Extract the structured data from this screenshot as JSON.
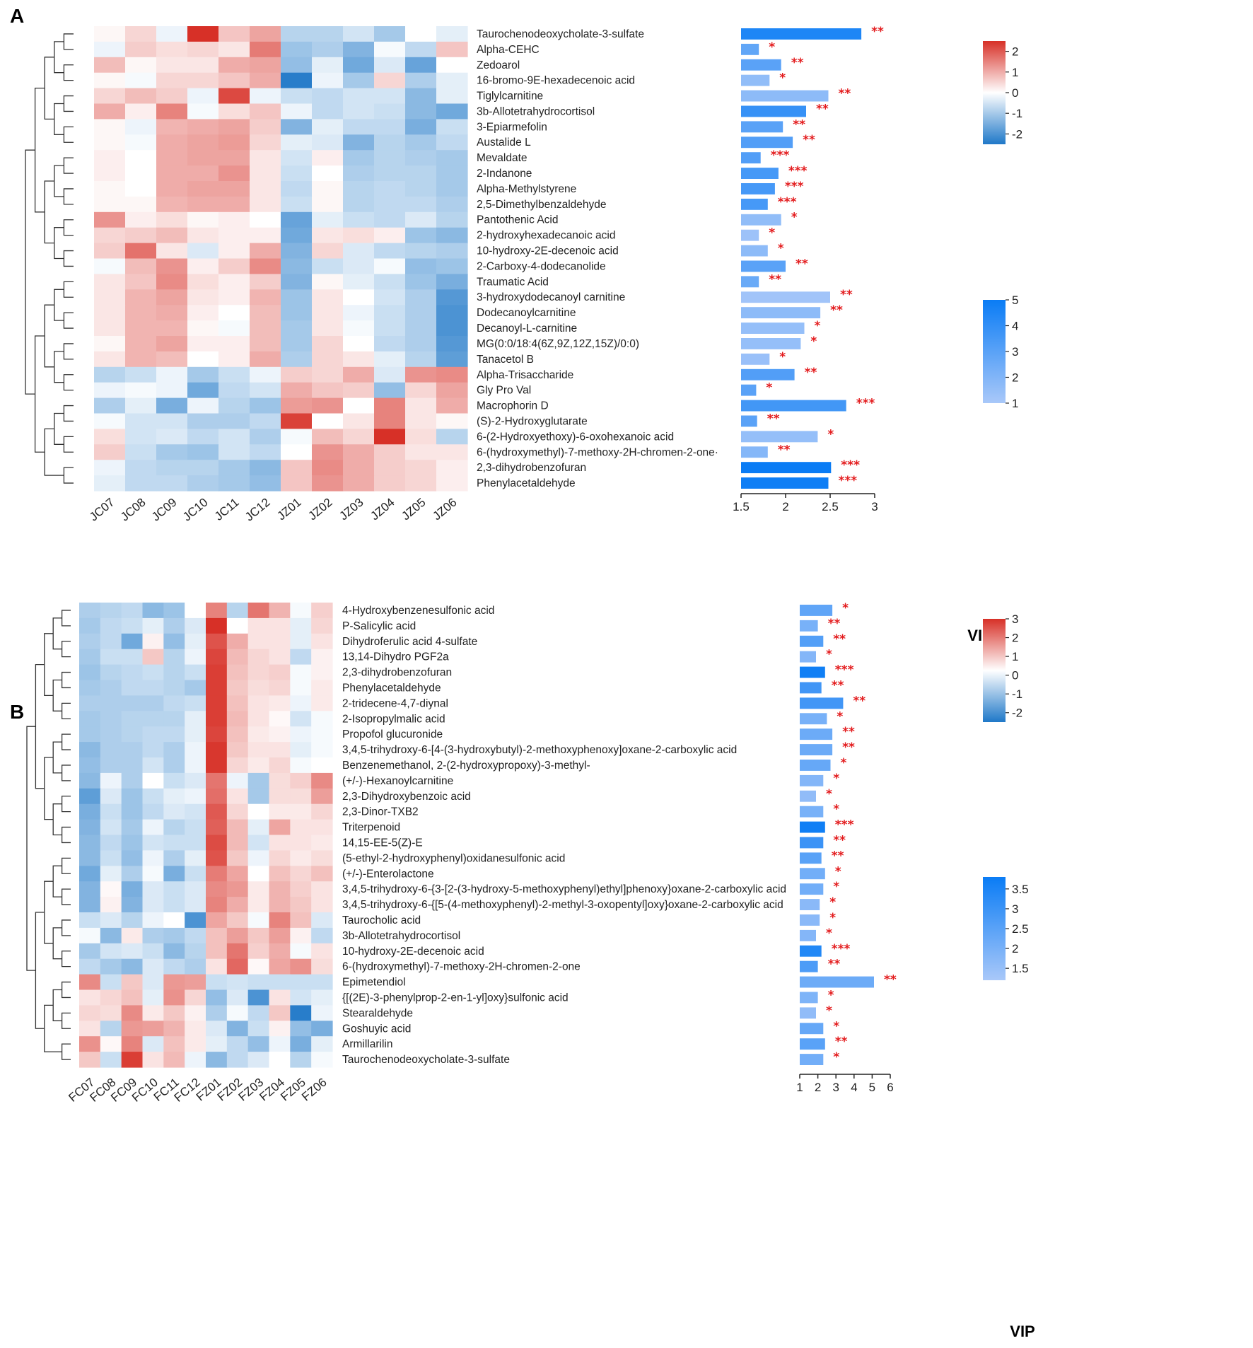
{
  "chart_data": [
    {
      "panel": "A",
      "type": "heatmap",
      "xlabel": "VIP",
      "samples": [
        "JC07",
        "JC08",
        "JC09",
        "JC10",
        "JC11",
        "JC12",
        "JZ01",
        "JZ02",
        "JZ03",
        "JZ04",
        "JZ05",
        "JZ06"
      ],
      "heat_ticks": [
        "2",
        "1",
        "0",
        "-1",
        "-2"
      ],
      "heat_range": [
        -2.5,
        2.5
      ],
      "vip_ticks": [
        "1.5",
        "2",
        "2.5",
        "3"
      ],
      "vip_range": [
        1.5,
        3
      ],
      "legend_vip_ticks": [
        "5",
        "4",
        "3",
        "2",
        "1"
      ],
      "legend_vip_range": [
        1,
        5
      ],
      "metabolites": [
        "Taurochenodeoxycholate-3-sulfate",
        "Alpha-CEHC",
        "Zedoarol",
        "16-bromo-9E-hexadecenoic acid",
        "Tiglylcarnitine",
        "3b-Allotetrahydrocortisol",
        "3-Epiarmefolin",
        "Austalide L",
        "Mevaldate",
        "2-Indanone",
        "Alpha-Methylstyrene",
        "2,5-Dimethylbenzaldehyde",
        "Pantothenic Acid",
        "2-hydroxyhexadecanoic acid",
        "10-hydroxy-2E-decenoic acid",
        "2-Carboxy-4-dodecanolide",
        "Traumatic Acid",
        "3-hydroxydodecanoyl carnitine",
        "Dodecanoylcarnitine",
        "Decanoyl-L-carnitine",
        "MG(0:0/18:4(6Z,9Z,12Z,15Z)/0:0)",
        "Tanacetol B",
        "Alpha-Trisaccharide",
        "Gly Pro Val",
        "Macrophorin D",
        "(S)-2-Hydroxyglutarate",
        "6-(2-Hydroxyethoxy)-6-oxohexanoic acid",
        "6-(hydroxymethyl)-7-methoxy-2H-chromen-2-one·",
        "2,3-dihydrobenzofuran",
        "Phenylacetaldehyde"
      ],
      "vip": [
        2.85,
        1.7,
        1.95,
        1.82,
        2.48,
        2.23,
        1.97,
        2.08,
        1.72,
        1.92,
        1.88,
        1.8,
        1.95,
        1.7,
        1.8,
        2.0,
        1.7,
        2.5,
        2.39,
        2.21,
        2.17,
        1.82,
        2.1,
        1.67,
        2.68,
        1.68,
        2.36,
        1.8,
        2.51,
        2.48
      ],
      "fold": [
        4.5,
        2.8,
        3.0,
        1.6,
        1.7,
        3.9,
        3.0,
        3.2,
        3.2,
        3.5,
        3.5,
        3.5,
        1.6,
        1.3,
        1.7,
        3.0,
        2.6,
        1.2,
        1.7,
        1.5,
        1.5,
        1.4,
        3.2,
        3.0,
        3.6,
        3.0,
        1.5,
        1.9,
        5.0,
        4.9
      ],
      "sig": [
        "**",
        "*",
        "**",
        "*",
        "**",
        "**",
        "**",
        "**",
        "***",
        "***",
        "***",
        "***",
        "*",
        "*",
        "*",
        "**",
        "**",
        "**",
        "**",
        "*",
        "*",
        "*",
        "**",
        "*",
        "***",
        "**",
        "*",
        "**",
        "***",
        "***"
      ],
      "values": [
        [
          0.1,
          0.5,
          -0.2,
          2.5,
          0.7,
          1.1,
          -0.8,
          -0.8,
          -0.5,
          -1.0,
          0.0,
          -0.3
        ],
        [
          -0.2,
          0.6,
          0.4,
          0.5,
          0.3,
          1.6,
          -1.1,
          -0.9,
          -1.4,
          -0.1,
          -0.7,
          0.7
        ],
        [
          0.8,
          0.1,
          0.3,
          0.3,
          1.0,
          1.1,
          -1.2,
          -0.3,
          -1.6,
          -0.4,
          -1.7,
          0.0
        ],
        [
          0.1,
          -0.1,
          0.5,
          0.5,
          0.7,
          1.0,
          -2.4,
          -0.2,
          -1.0,
          0.5,
          -0.9,
          -0.3
        ],
        [
          0.5,
          0.8,
          0.6,
          -0.2,
          2.2,
          -0.2,
          -0.6,
          -0.7,
          -0.5,
          -0.5,
          -1.3,
          -0.3
        ],
        [
          1.0,
          0.2,
          1.5,
          -0.1,
          0.4,
          0.7,
          -0.2,
          -0.7,
          -0.5,
          -0.6,
          -1.3,
          -1.6
        ],
        [
          0.1,
          -0.2,
          0.9,
          1.0,
          1.1,
          0.6,
          -1.4,
          -0.3,
          -0.7,
          -0.7,
          -1.5,
          -0.6
        ],
        [
          0.1,
          -0.1,
          1.0,
          1.1,
          1.2,
          0.5,
          -0.3,
          -0.4,
          -1.4,
          -0.8,
          -1.0,
          -0.7
        ],
        [
          0.2,
          0.0,
          1.0,
          1.1,
          1.1,
          0.3,
          -0.5,
          0.2,
          -1.0,
          -0.8,
          -0.9,
          -1.0
        ],
        [
          0.2,
          0.0,
          1.0,
          1.0,
          1.3,
          0.3,
          -0.6,
          0.0,
          -0.9,
          -0.8,
          -0.8,
          -1.0
        ],
        [
          0.1,
          0.0,
          1.0,
          1.1,
          1.1,
          0.3,
          -0.7,
          0.1,
          -0.8,
          -0.7,
          -0.8,
          -1.0
        ],
        [
          0.1,
          0.1,
          0.9,
          1.0,
          1.0,
          0.3,
          -0.6,
          0.1,
          -0.8,
          -0.7,
          -0.7,
          -0.9
        ],
        [
          1.3,
          0.2,
          0.4,
          0.1,
          0.2,
          0.0,
          -1.7,
          -0.3,
          -0.6,
          -0.7,
          -0.4,
          -0.8
        ],
        [
          0.5,
          0.6,
          0.8,
          0.3,
          0.2,
          0.2,
          -1.6,
          0.3,
          0.4,
          0.2,
          -1.1,
          -1.3
        ],
        [
          0.6,
          1.7,
          0.3,
          -0.4,
          0.2,
          1.0,
          -1.4,
          0.5,
          -0.4,
          -0.7,
          -0.8,
          -0.9
        ],
        [
          -0.1,
          0.8,
          1.3,
          0.2,
          0.6,
          1.4,
          -1.3,
          -0.6,
          -0.4,
          -0.1,
          -1.2,
          -1.1
        ],
        [
          0.3,
          0.7,
          1.4,
          0.4,
          0.2,
          0.6,
          -1.4,
          0.1,
          -0.3,
          -0.6,
          -1.1,
          -1.5
        ],
        [
          0.3,
          0.9,
          1.1,
          0.3,
          0.2,
          0.9,
          -1.1,
          0.3,
          0.0,
          -0.5,
          -0.9,
          -1.9
        ],
        [
          0.3,
          0.9,
          1.0,
          0.2,
          0.0,
          0.8,
          -1.1,
          0.3,
          -0.2,
          -0.6,
          -0.9,
          -2.0
        ],
        [
          0.3,
          0.9,
          0.9,
          0.1,
          -0.1,
          0.8,
          -1.0,
          0.3,
          -0.1,
          -0.6,
          -0.9,
          -2.0
        ],
        [
          0.1,
          0.9,
          1.1,
          0.2,
          0.2,
          0.8,
          -1.0,
          0.5,
          0.0,
          -0.7,
          -0.9,
          -1.9
        ],
        [
          0.3,
          0.9,
          0.8,
          0.0,
          0.2,
          1.0,
          -0.9,
          0.5,
          0.3,
          -0.3,
          -0.8,
          -1.8
        ],
        [
          -0.8,
          -0.6,
          -0.2,
          -1.0,
          -0.6,
          -0.2,
          0.6,
          0.5,
          1.0,
          -0.4,
          1.3,
          1.4
        ],
        [
          -0.2,
          -0.1,
          -0.2,
          -1.6,
          -0.7,
          -0.5,
          1.0,
          0.7,
          0.6,
          -1.2,
          0.5,
          1.1
        ],
        [
          -0.9,
          -0.3,
          -1.5,
          -0.2,
          -0.8,
          -1.1,
          1.2,
          1.3,
          0.0,
          1.5,
          0.3,
          1.0
        ],
        [
          -0.1,
          -0.5,
          -0.5,
          -0.9,
          -0.9,
          -0.7,
          2.3,
          0.0,
          0.3,
          1.5,
          0.3,
          0.1
        ],
        [
          0.4,
          -0.5,
          -0.4,
          -0.7,
          -0.5,
          -0.9,
          -0.1,
          0.8,
          0.5,
          2.5,
          0.4,
          -0.8
        ],
        [
          0.6,
          -0.6,
          -1.0,
          -1.1,
          -0.5,
          -0.7,
          0.0,
          1.3,
          1.0,
          0.6,
          0.3,
          0.3
        ],
        [
          -0.2,
          -0.7,
          -0.8,
          -0.8,
          -1.0,
          -1.3,
          0.7,
          1.4,
          1.0,
          0.6,
          0.5,
          0.2
        ],
        [
          -0.3,
          -0.7,
          -0.7,
          -0.9,
          -1.0,
          -1.2,
          0.7,
          1.3,
          1.0,
          0.6,
          0.5,
          0.2
        ]
      ]
    },
    {
      "panel": "B",
      "type": "heatmap",
      "xlabel": "VIP",
      "samples": [
        "FC07",
        "FC08",
        "FC09",
        "FC10",
        "FC11",
        "FC12",
        "FZ01",
        "FZ02",
        "FZ03",
        "FZ04",
        "FZ05",
        "FZ06"
      ],
      "heat_ticks": [
        "3",
        "2",
        "1",
        "0",
        "-1",
        "-2"
      ],
      "heat_range": [
        -2.5,
        3
      ],
      "vip_ticks": [
        "1",
        "2",
        "3",
        "4",
        "5",
        "6"
      ],
      "vip_range": [
        1,
        6
      ],
      "legend_vip_ticks": [
        "3.5",
        "3",
        "2.5",
        "2",
        "1.5"
      ],
      "legend_vip_range": [
        1.2,
        3.8
      ],
      "metabolites": [
        "4-Hydroxybenzenesulfonic acid",
        "P-Salicylic acid",
        "Dihydroferulic acid 4-sulfate",
        "13,14-Dihydro PGF2a",
        "2,3-dihydrobenzofuran",
        "Phenylacetaldehyde",
        "2-tridecene-4,7-diynal",
        "2-Isopropylmalic acid",
        "Propofol glucuronide",
        "3,4,5-trihydroxy-6-[4-(3-hydroxybutyl)-2-methoxyphenoxy]oxane-2-carboxylic acid",
        "Benzenemethanol, 2-(2-hydroxypropoxy)-3-methyl-",
        "(+/-)-Hexanoylcarnitine",
        "2,3-Dihydroxybenzoic acid",
        "2,3-Dinor-TXB2",
        "Triterpenoid",
        "14,15-EE-5(Z)-E",
        "(5-ethyl-2-hydroxyphenyl)oxidanesulfonic acid",
        "(+/-)-Enterolactone",
        "3,4,5-trihydroxy-6-{3-[2-(3-hydroxy-5-methoxyphenyl)ethyl]phenoxy}oxane-2-carboxylic acid",
        "3,4,5-trihydroxy-6-{[5-(4-methoxyphenyl)-2-methyl-3-oxopentyl]oxy}oxane-2-carboxylic acid",
        "Taurocholic acid",
        "3b-Allotetrahydrocortisol",
        "10-hydroxy-2E-decenoic acid",
        "6-(hydroxymethyl)-7-methoxy-2H-chromen-2-one",
        "Epimetendiol",
        "{[(2E)-3-phenylprop-2-en-1-yl]oxy}sulfonic acid",
        "Stearaldehyde",
        "Goshuyic acid",
        "Armillarilin",
        "Taurochenodeoxycholate-3-sulfate"
      ],
      "vip": [
        2.8,
        2.0,
        2.3,
        1.9,
        2.4,
        2.2,
        3.4,
        2.5,
        2.8,
        2.8,
        2.7,
        2.3,
        1.9,
        2.3,
        2.4,
        2.3,
        2.2,
        2.4,
        2.3,
        2.1,
        2.1,
        1.9,
        2.2,
        2.0,
        5.1,
        2.0,
        1.9,
        2.3,
        2.4,
        2.3
      ],
      "fold": [
        2.4,
        2.0,
        2.6,
        1.8,
        3.7,
        2.9,
        2.9,
        2.0,
        2.2,
        2.2,
        2.3,
        1.8,
        1.6,
        2.0,
        3.7,
        3.0,
        2.5,
        2.1,
        2.1,
        1.7,
        1.7,
        1.8,
        3.4,
        2.7,
        2.2,
        1.9,
        1.6,
        2.3,
        2.5,
        2.1
      ],
      "sig": [
        "*",
        "**",
        "**",
        "*",
        "***",
        "**",
        "**",
        "*",
        "**",
        "**",
        "*",
        "*",
        "*",
        "*",
        "***",
        "**",
        "**",
        "*",
        "*",
        "*",
        "*",
        "*",
        "***",
        "**",
        "**",
        "*",
        "*",
        "*",
        "**",
        "*"
      ],
      "values": [
        [
          -0.9,
          -0.8,
          -0.7,
          -1.3,
          -1.1,
          0.0,
          1.8,
          -0.8,
          2.0,
          1.1,
          -0.1,
          0.7
        ],
        [
          -1.0,
          -0.7,
          -0.6,
          -0.3,
          -0.9,
          -0.4,
          3.0,
          0.0,
          0.4,
          0.4,
          -0.3,
          0.6
        ],
        [
          -0.9,
          -0.7,
          -1.6,
          0.2,
          -1.2,
          -0.3,
          2.5,
          1.2,
          0.4,
          0.4,
          -0.3,
          0.4
        ],
        [
          -1.0,
          -0.6,
          -0.6,
          0.8,
          -0.8,
          -0.2,
          2.7,
          1.0,
          0.6,
          0.4,
          -0.7,
          0.2
        ],
        [
          -1.1,
          -0.8,
          -0.7,
          -0.6,
          -0.8,
          -0.6,
          2.8,
          0.9,
          0.6,
          0.7,
          -0.1,
          0.2
        ],
        [
          -1.0,
          -0.9,
          -0.7,
          -0.7,
          -0.8,
          -1.0,
          2.8,
          0.8,
          0.5,
          0.6,
          -0.1,
          0.3
        ],
        [
          -0.9,
          -0.9,
          -0.9,
          -0.9,
          -0.7,
          -0.6,
          2.8,
          0.9,
          0.4,
          0.3,
          -0.2,
          0.3
        ],
        [
          -1.0,
          -0.9,
          -0.8,
          -0.8,
          -0.8,
          -0.3,
          2.8,
          1.0,
          0.4,
          0.1,
          -0.5,
          -0.1
        ],
        [
          -1.0,
          -0.9,
          -0.8,
          -0.7,
          -0.7,
          -0.3,
          2.7,
          0.9,
          0.3,
          0.2,
          -0.2,
          -0.1
        ],
        [
          -1.3,
          -0.9,
          -0.9,
          -0.7,
          -0.9,
          -0.2,
          2.9,
          0.8,
          0.4,
          0.4,
          -0.3,
          -0.1
        ],
        [
          -1.2,
          -0.9,
          -0.9,
          -0.5,
          -0.9,
          -0.2,
          2.9,
          0.6,
          0.3,
          0.6,
          -0.1,
          0.0
        ],
        [
          -1.3,
          -0.2,
          -0.9,
          0.0,
          -0.6,
          -0.4,
          2.0,
          -0.2,
          -1.0,
          0.5,
          0.7,
          1.7
        ],
        [
          -1.8,
          -0.4,
          -1.1,
          -0.6,
          -0.3,
          -0.2,
          2.1,
          0.4,
          -1.0,
          0.5,
          0.5,
          1.4
        ],
        [
          -1.5,
          -0.6,
          -1.1,
          -0.7,
          -0.4,
          -0.5,
          2.4,
          0.6,
          0.0,
          0.3,
          0.3,
          0.6
        ],
        [
          -1.4,
          -0.5,
          -1.0,
          -0.2,
          -0.8,
          -0.6,
          2.3,
          1.0,
          -0.3,
          1.3,
          0.4,
          0.4
        ],
        [
          -1.3,
          -0.7,
          -1.1,
          -0.5,
          -0.6,
          -0.6,
          2.6,
          1.0,
          -0.5,
          0.4,
          0.4,
          0.3
        ],
        [
          -1.3,
          -0.6,
          -1.2,
          -0.2,
          -0.9,
          -0.3,
          2.5,
          0.8,
          -0.2,
          0.6,
          0.3,
          0.5
        ],
        [
          -1.6,
          -0.3,
          -0.9,
          -0.1,
          -1.5,
          -0.6,
          1.9,
          1.3,
          0.0,
          0.9,
          0.6,
          0.9
        ],
        [
          -1.4,
          0.1,
          -1.5,
          -0.4,
          -0.6,
          -0.4,
          1.7,
          1.5,
          0.3,
          1.1,
          0.7,
          0.4
        ],
        [
          -1.4,
          0.2,
          -1.4,
          -0.4,
          -0.6,
          -0.4,
          1.8,
          1.2,
          0.3,
          1.1,
          0.8,
          0.4
        ],
        [
          -0.6,
          -0.4,
          -0.8,
          -0.2,
          0.0,
          -2.0,
          1.3,
          0.8,
          -0.1,
          1.8,
          0.9,
          -0.4
        ],
        [
          -0.1,
          -1.3,
          0.3,
          -0.9,
          -1.0,
          -0.7,
          0.9,
          1.4,
          0.8,
          1.4,
          0.2,
          -0.7
        ],
        [
          -1.0,
          -0.5,
          -0.4,
          -0.6,
          -1.3,
          -0.8,
          0.9,
          2.0,
          0.7,
          1.2,
          -0.1,
          0.4
        ],
        [
          -0.7,
          -1.0,
          -1.3,
          -0.4,
          -0.7,
          -0.9,
          0.4,
          2.2,
          0.1,
          1.3,
          1.6,
          0.5
        ],
        [
          1.7,
          -0.6,
          0.8,
          -0.4,
          1.5,
          1.4,
          -0.6,
          -0.5,
          -0.6,
          -0.6,
          -0.6,
          -0.6
        ],
        [
          0.4,
          0.6,
          0.9,
          -0.3,
          1.6,
          0.6,
          -1.2,
          -0.4,
          -2.0,
          0.4,
          -0.5,
          -0.3
        ],
        [
          0.6,
          0.5,
          1.7,
          0.3,
          0.8,
          0.2,
          -0.9,
          -0.1,
          -0.7,
          0.8,
          -2.4,
          -0.2
        ],
        [
          0.4,
          -0.8,
          1.5,
          1.4,
          1.1,
          0.3,
          -0.4,
          -1.4,
          -0.6,
          0.2,
          -1.2,
          -1.5
        ],
        [
          1.6,
          0.1,
          1.8,
          -0.4,
          0.9,
          0.3,
          -0.3,
          -0.7,
          -1.2,
          -0.2,
          -1.5,
          -0.3
        ],
        [
          0.8,
          -0.6,
          2.8,
          0.4,
          1.0,
          -0.2,
          -1.3,
          -0.7,
          -0.4,
          0.0,
          -0.8,
          -0.1
        ]
      ]
    }
  ]
}
